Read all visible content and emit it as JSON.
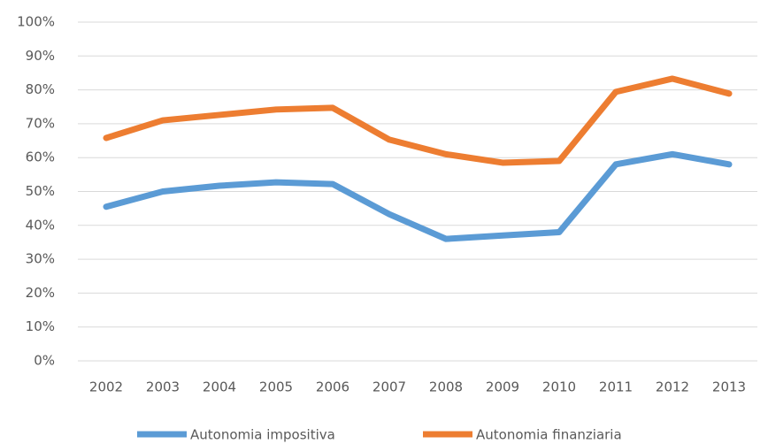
{
  "chart_data": {
    "type": "line",
    "categories": [
      "2002",
      "2003",
      "2004",
      "2005",
      "2006",
      "2007",
      "2008",
      "2009",
      "2010",
      "2011",
      "2012",
      "2013"
    ],
    "series": [
      {
        "name": "Autonomia impositiva",
        "color": "#5b9bd5",
        "values": [
          45.5,
          50,
          51.7,
          52.7,
          52.2,
          43.3,
          36,
          37,
          38,
          58,
          61,
          58
        ]
      },
      {
        "name": "Autonomia finanziaria",
        "color": "#ed7d31",
        "values": [
          65.8,
          71,
          72.6,
          74.2,
          74.7,
          65.3,
          61,
          58.5,
          59,
          79.4,
          83.3,
          78.9
        ]
      }
    ],
    "ylim": [
      0,
      100
    ],
    "yticks": [
      {
        "value": 0,
        "label": "0%"
      },
      {
        "value": 10,
        "label": "10%"
      },
      {
        "value": 20,
        "label": "20%"
      },
      {
        "value": 30,
        "label": "30%"
      },
      {
        "value": 40,
        "label": "40%"
      },
      {
        "value": 50,
        "label": "50%"
      },
      {
        "value": 60,
        "label": "60%"
      },
      {
        "value": 70,
        "label": "70%"
      },
      {
        "value": 80,
        "label": "80%"
      },
      {
        "value": 90,
        "label": "90%"
      },
      {
        "value": 100,
        "label": "100%"
      }
    ],
    "grid": true,
    "legend": "bottom"
  }
}
